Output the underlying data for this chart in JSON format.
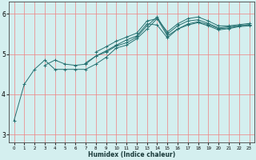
{
  "title": "",
  "xlabel": "Humidex (Indice chaleur)",
  "ylabel": "",
  "xlim": [
    -0.5,
    23.5
  ],
  "ylim": [
    2.8,
    6.3
  ],
  "yticks": [
    3,
    4,
    5,
    6
  ],
  "xticks": [
    0,
    1,
    2,
    3,
    4,
    5,
    6,
    7,
    8,
    9,
    10,
    11,
    12,
    13,
    14,
    15,
    16,
    17,
    18,
    19,
    20,
    21,
    22,
    23
  ],
  "bg_color": "#d4efef",
  "line_color": "#267070",
  "grid_color": "#f08080",
  "lines": [
    [
      0.0,
      1.0,
      2.0,
      3.0,
      4.0,
      5.0,
      6.0,
      7.0,
      8.0,
      9.0,
      10.0,
      11.0,
      12.0,
      13.0,
      14.0,
      15.0,
      16.0,
      17.0,
      18.0,
      19.0,
      20.0,
      21.0,
      22.0,
      23.0
    ],
    [
      3.35,
      4.25,
      4.62,
      4.85,
      4.62,
      4.62,
      4.62,
      4.62,
      4.75,
      4.92,
      5.15,
      5.22,
      5.38,
      5.62,
      5.88,
      5.45,
      5.62,
      5.72,
      5.78,
      5.7,
      5.6,
      5.63,
      5.68,
      5.7
    ],
    [
      null,
      null,
      null,
      4.72,
      4.85,
      4.75,
      4.72,
      4.75,
      4.95,
      5.05,
      5.2,
      5.28,
      5.42,
      5.7,
      5.92,
      5.5,
      5.7,
      5.82,
      5.85,
      5.76,
      5.65,
      5.68,
      5.7,
      5.73
    ],
    [
      null,
      null,
      null,
      null,
      null,
      null,
      null,
      null,
      5.05,
      5.18,
      5.32,
      5.42,
      5.52,
      5.82,
      5.88,
      5.55,
      5.75,
      5.88,
      5.92,
      5.82,
      5.7,
      5.7,
      5.73,
      5.76
    ],
    [
      null,
      null,
      null,
      null,
      null,
      null,
      null,
      4.78,
      4.95,
      5.08,
      5.22,
      5.35,
      5.45,
      5.75,
      5.72,
      5.4,
      5.62,
      5.75,
      5.8,
      5.73,
      5.63,
      5.65,
      5.7,
      5.73
    ]
  ]
}
